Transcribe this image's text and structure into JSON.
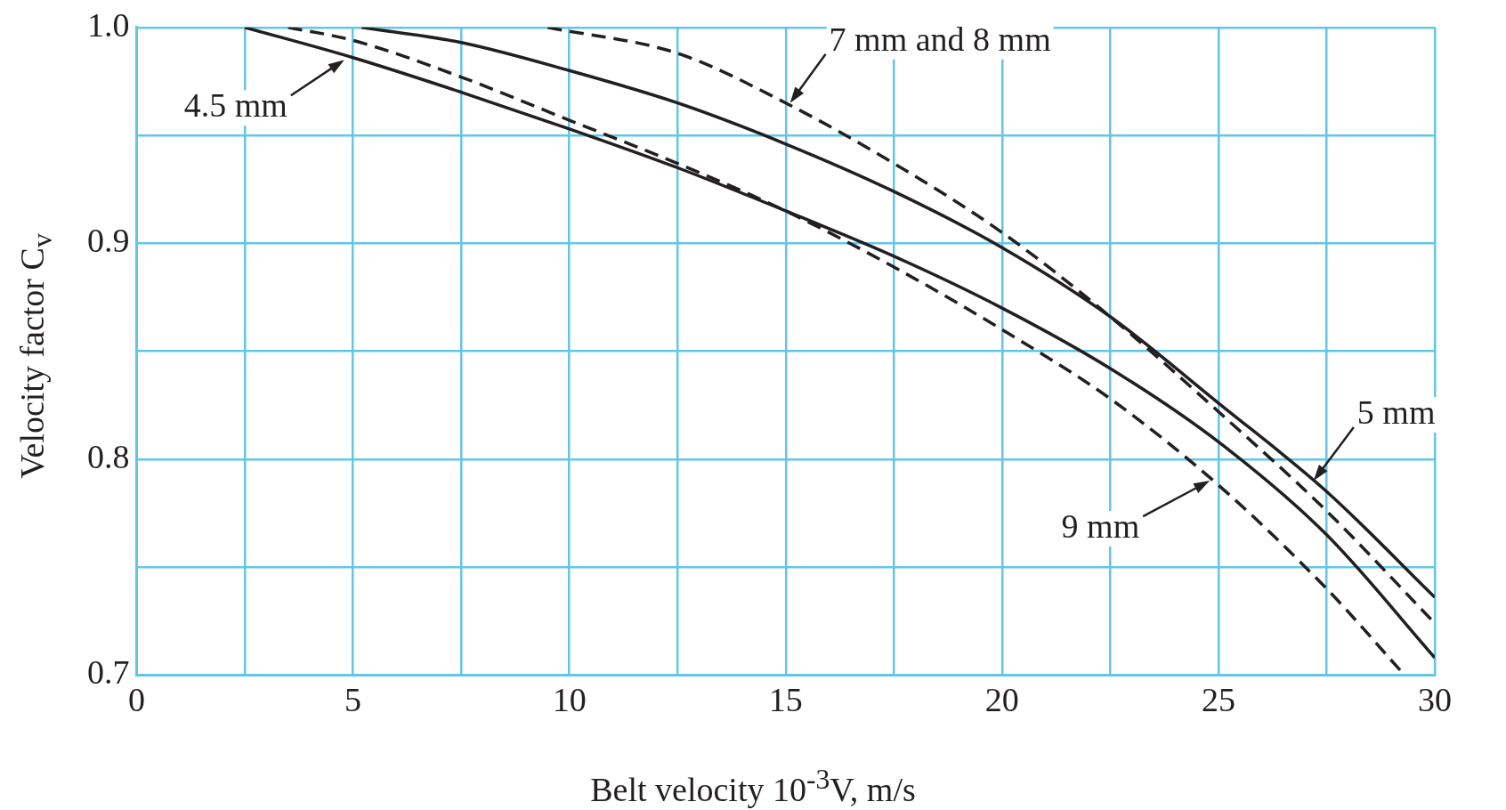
{
  "chart_data": {
    "type": "line",
    "xlabel": "Belt velocity 10$^{-3}$V, m/s",
    "ylabel": "Velocity factor C$_{v}$",
    "xlim": [
      0,
      30
    ],
    "ylim": [
      0.7,
      1.0
    ],
    "xticks": [
      0,
      {
        "value": 2.5,
        "label": null
      },
      5,
      {
        "value": 7.5,
        "label": null
      },
      10,
      {
        "value": 12.5,
        "label": null
      },
      15,
      {
        "value": 17.5,
        "label": null
      },
      20,
      {
        "value": 22.5,
        "label": null
      },
      25,
      {
        "value": 27.5,
        "label": null
      },
      30
    ],
    "yticks": [
      0.7,
      {
        "value": 0.75,
        "label": null
      },
      0.8,
      {
        "value": 0.85,
        "label": null
      },
      0.9,
      {
        "value": 0.95,
        "label": null
      },
      {
        "value": 1.0,
        "label": "1.0"
      }
    ],
    "grid": true,
    "legend": false,
    "marker": "none",
    "series": [
      {
        "color": "#231f20",
        "line_style": "solid",
        "x": [
          2.5,
          5,
          7.5,
          10,
          12.5,
          15,
          17.5,
          20,
          22.5,
          25,
          27.5,
          30
        ],
        "values": [
          1.0,
          0.986,
          0.97,
          0.953,
          0.935,
          0.915,
          0.894,
          0.87,
          0.842,
          0.808,
          0.765,
          0.708
        ]
      },
      {
        "color": "#231f20",
        "line_style": "dashed",
        "x": [
          3.5,
          5,
          7.5,
          10,
          12.5,
          15,
          17.5,
          20,
          22.5,
          25,
          27.5,
          29.3
        ],
        "values": [
          1.0,
          0.994,
          0.977,
          0.957,
          0.937,
          0.915,
          0.889,
          0.86,
          0.828,
          0.788,
          0.74,
          0.7
        ]
      },
      {
        "color": "#231f20",
        "line_style": "solid",
        "x": [
          5.2,
          7.5,
          10,
          12.5,
          15,
          17.5,
          20,
          22.5,
          25,
          27.5,
          30
        ],
        "values": [
          1.0,
          0.993,
          0.98,
          0.965,
          0.946,
          0.924,
          0.898,
          0.866,
          0.826,
          0.785,
          0.736
        ]
      },
      {
        "color": "#231f20",
        "line_style": "dashed",
        "x": [
          9.5,
          12.5,
          15,
          17.5,
          20,
          22.5,
          25,
          27.5,
          30
        ],
        "values": [
          1.0,
          0.988,
          0.965,
          0.937,
          0.905,
          0.866,
          0.822,
          0.776,
          0.724
        ]
      }
    ],
    "annotations": [
      {
        "text": "4.5 mm",
        "x": 4.8,
        "y": 0.985
      },
      {
        "text": "7 mm and 8 mm",
        "x": 15.1,
        "y": 0.965
      },
      {
        "text": "5 mm",
        "x": 27.2,
        "y": 0.79
      },
      {
        "text": "9 mm",
        "x": 24.8,
        "y": 0.79
      }
    ]
  }
}
